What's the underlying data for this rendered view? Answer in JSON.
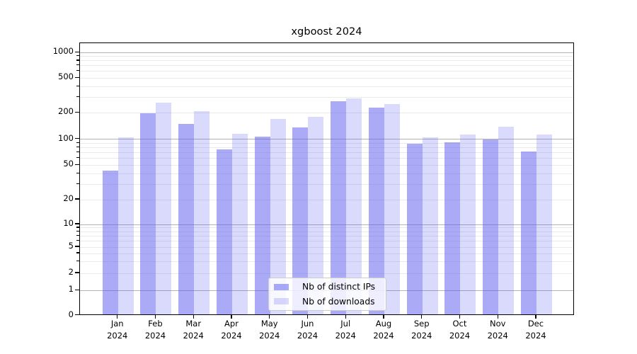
{
  "chart_data": {
    "type": "bar",
    "title": "xgboost 2024",
    "categories": [
      "Jan",
      "Feb",
      "Mar",
      "Apr",
      "May",
      "Jun",
      "Jul",
      "Aug",
      "Sep",
      "Oct",
      "Nov",
      "Dec"
    ],
    "category_year": "2024",
    "series": [
      {
        "name": "Nb of distinct IPs",
        "color": "rgba(85,85,240,0.5)",
        "values": [
          43,
          196,
          149,
          76,
          108,
          137,
          273,
          231,
          89,
          92,
          100,
          72
        ]
      },
      {
        "name": "Nb of downloads",
        "color": "rgba(85,85,240,0.22)",
        "values": [
          105,
          260,
          209,
          115,
          170,
          179,
          291,
          252,
          106,
          113,
          139,
          113
        ]
      }
    ],
    "yticks": [
      0,
      1,
      2,
      5,
      10,
      20,
      50,
      100,
      200,
      500,
      1000
    ],
    "ylim": [
      0,
      1000
    ],
    "yscale": "symlog",
    "grid": "both",
    "legend_position": "lower center"
  }
}
